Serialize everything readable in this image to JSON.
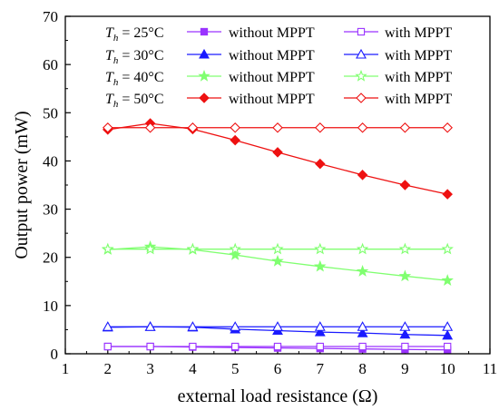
{
  "chart_data": {
    "type": "line",
    "xlabel": "external load resistance (Ω)",
    "ylabel": "Output power (mW)",
    "xlim": [
      1,
      11
    ],
    "ylim": [
      0,
      70
    ],
    "xticks": [
      "1",
      "2",
      "3",
      "4",
      "5",
      "6",
      "7",
      "8",
      "9",
      "10",
      "11"
    ],
    "yticks": [
      "0",
      "10",
      "20",
      "30",
      "40",
      "50",
      "60",
      "70"
    ],
    "grid": false,
    "legend_position": "top",
    "legend_rows": [
      {
        "T_label": "T",
        "T_sub": "h",
        "T_value": " = 25°C",
        "without": "without MPPT",
        "with": "with MPPT",
        "color": "#9a33ff",
        "marker": "square"
      },
      {
        "T_label": "T",
        "T_sub": "h",
        "T_value": " = 30°C",
        "without": "without MPPT",
        "with": "with MPPT",
        "color": "#1a1aff",
        "marker": "triangle"
      },
      {
        "T_label": "T",
        "T_sub": "h",
        "T_value": " = 40°C",
        "without": "without MPPT",
        "with": "with MPPT",
        "color": "#80ff70",
        "marker": "star"
      },
      {
        "T_label": "T",
        "T_sub": "h",
        "T_value": " = 50°C",
        "without": "without MPPT",
        "with": "with MPPT",
        "color": "#ee1111",
        "marker": "diamond"
      }
    ],
    "x": [
      2,
      3,
      4,
      5,
      6,
      7,
      8,
      9,
      10
    ],
    "series": [
      {
        "name": "Th = 25°C without MPPT",
        "color": "#9a33ff",
        "marker": "square",
        "filled": true,
        "values": [
          1.5,
          1.5,
          1.4,
          1.3,
          1.2,
          1.1,
          1.0,
          0.9,
          0.8
        ]
      },
      {
        "name": "Th = 25°C with MPPT",
        "color": "#9a33ff",
        "marker": "square",
        "filled": false,
        "values": [
          1.5,
          1.5,
          1.5,
          1.5,
          1.5,
          1.5,
          1.5,
          1.5,
          1.5
        ]
      },
      {
        "name": "Th = 30°C without MPPT",
        "color": "#1a1aff",
        "marker": "triangle",
        "filled": true,
        "values": [
          5.5,
          5.6,
          5.5,
          5.1,
          4.8,
          4.5,
          4.3,
          4.0,
          3.8
        ]
      },
      {
        "name": "Th = 30°C with MPPT",
        "color": "#1a1aff",
        "marker": "triangle",
        "filled": false,
        "values": [
          5.6,
          5.6,
          5.6,
          5.6,
          5.6,
          5.6,
          5.6,
          5.6,
          5.6
        ]
      },
      {
        "name": "Th = 40°C without MPPT",
        "color": "#80ff70",
        "marker": "star",
        "filled": true,
        "values": [
          21.6,
          22.2,
          21.6,
          20.5,
          19.2,
          18.1,
          17.1,
          16.1,
          15.2
        ]
      },
      {
        "name": "Th = 40°C with MPPT",
        "color": "#80ff70",
        "marker": "star",
        "filled": false,
        "values": [
          21.7,
          21.7,
          21.7,
          21.7,
          21.7,
          21.7,
          21.7,
          21.7,
          21.7
        ]
      },
      {
        "name": "Th = 50°C without MPPT",
        "color": "#ee1111",
        "marker": "diamond",
        "filled": true,
        "values": [
          46.5,
          47.8,
          46.6,
          44.3,
          41.8,
          39.4,
          37.1,
          35.0,
          33.1
        ]
      },
      {
        "name": "Th = 50°C with MPPT",
        "color": "#ee1111",
        "marker": "diamond",
        "filled": false,
        "values": [
          46.9,
          46.9,
          46.9,
          46.9,
          46.9,
          46.9,
          46.9,
          46.9,
          46.9
        ]
      }
    ]
  }
}
